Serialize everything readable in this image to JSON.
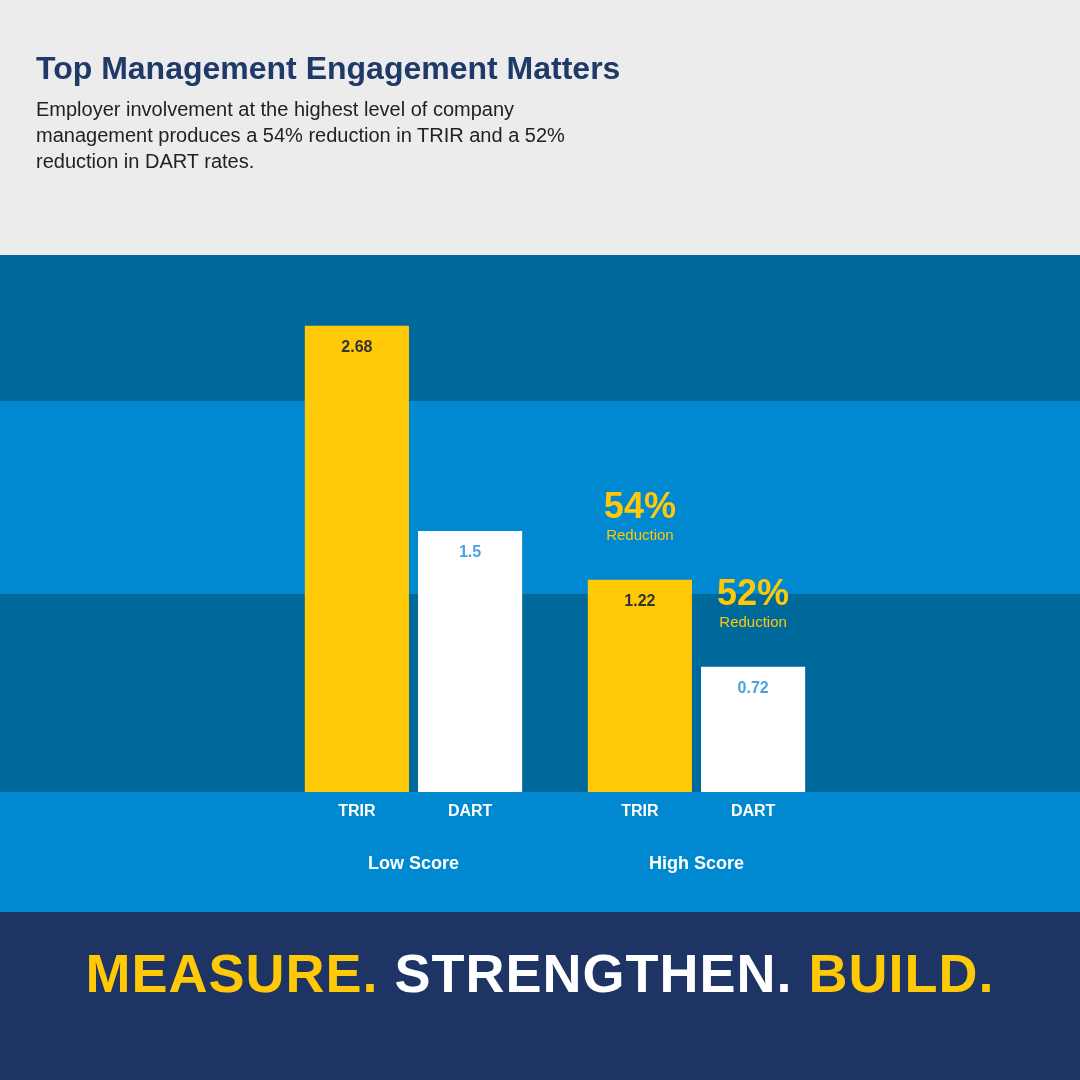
{
  "chart_data": {
    "type": "bar",
    "title": "Top Management Engagement Matters",
    "subtitle": "Employer involvement at the highest level of company management produces a 54% reduction in TRIR and a 52% reduction in DART rates.",
    "categories": [
      "Low Score",
      "High Score"
    ],
    "series": [
      {
        "name": "TRIR",
        "color": "#ffc907",
        "values": [
          2.68,
          1.22
        ]
      },
      {
        "name": "DART",
        "color": "#ffffff",
        "values": [
          1.5,
          0.72
        ]
      }
    ],
    "tick_labels": "x",
    "data_labels": true,
    "legend": false,
    "grid": false,
    "annotations": [
      {
        "text": "54% Reduction",
        "x": "High Score",
        "y": 1.22
      },
      {
        "text": "52% Reduction",
        "x": "High Score",
        "y": 0.72
      },
      "MEASURE. STRENGTHEN. BUILD."
    ]
  }
}
